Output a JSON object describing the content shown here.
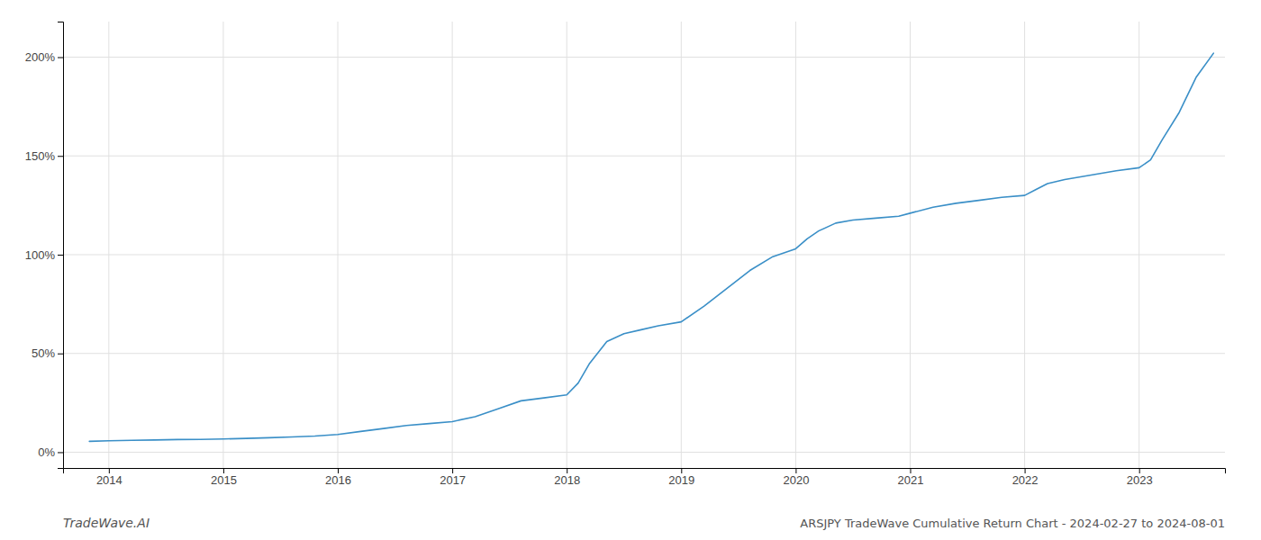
{
  "chart_data": {
    "type": "line",
    "title": "ARSJPY TradeWave Cumulative Return Chart - 2024-02-27 to 2024-08-01",
    "annotations": [
      "TradeWave.AI"
    ],
    "color": "#3a8fc7",
    "grid": true,
    "xlim": [
      2013.6,
      2023.75
    ],
    "ylim": [
      -8,
      218
    ],
    "xticks": [
      2014,
      2015,
      2016,
      2017,
      2018,
      2019,
      2020,
      2021,
      2022,
      2023
    ],
    "yticks": [
      {
        "value": 0,
        "label": "0%"
      },
      {
        "value": 50,
        "label": "50%"
      },
      {
        "value": 100,
        "label": "100%"
      },
      {
        "value": 150,
        "label": "150%"
      },
      {
        "value": 200,
        "label": "200%"
      }
    ],
    "x": [
      2013.83,
      2014.0,
      2014.2,
      2014.4,
      2014.6,
      2014.8,
      2015.0,
      2015.2,
      2015.4,
      2015.6,
      2015.8,
      2016.0,
      2016.2,
      2016.4,
      2016.6,
      2016.8,
      2017.0,
      2017.2,
      2017.4,
      2017.6,
      2017.8,
      2018.0,
      2018.1,
      2018.2,
      2018.35,
      2018.5,
      2018.65,
      2018.8,
      2019.0,
      2019.2,
      2019.4,
      2019.6,
      2019.8,
      2020.0,
      2020.1,
      2020.2,
      2020.35,
      2020.5,
      2020.7,
      2020.9,
      2021.0,
      2021.2,
      2021.4,
      2021.6,
      2021.8,
      2022.0,
      2022.1,
      2022.2,
      2022.35,
      2022.5,
      2022.65,
      2022.8,
      2023.0,
      2023.1,
      2023.2,
      2023.35,
      2023.5,
      2023.65
    ],
    "values": [
      5.5,
      5.8,
      6.0,
      6.2,
      6.4,
      6.5,
      6.7,
      7.0,
      7.3,
      7.7,
      8.2,
      9.0,
      10.5,
      12.0,
      13.5,
      14.5,
      15.5,
      18.0,
      22.0,
      26.0,
      27.5,
      29.0,
      35.0,
      45.0,
      56.0,
      60.0,
      62.0,
      64.0,
      66.0,
      74.0,
      83.0,
      92.0,
      99.0,
      103.0,
      108.0,
      112.0,
      116.0,
      117.5,
      118.5,
      119.5,
      121.0,
      124.0,
      126.0,
      127.5,
      129.0,
      130.0,
      133.0,
      136.0,
      138.0,
      139.5,
      141.0,
      142.5,
      144.0,
      148.0,
      158.0,
      172.0,
      190.0,
      202.0
    ]
  }
}
